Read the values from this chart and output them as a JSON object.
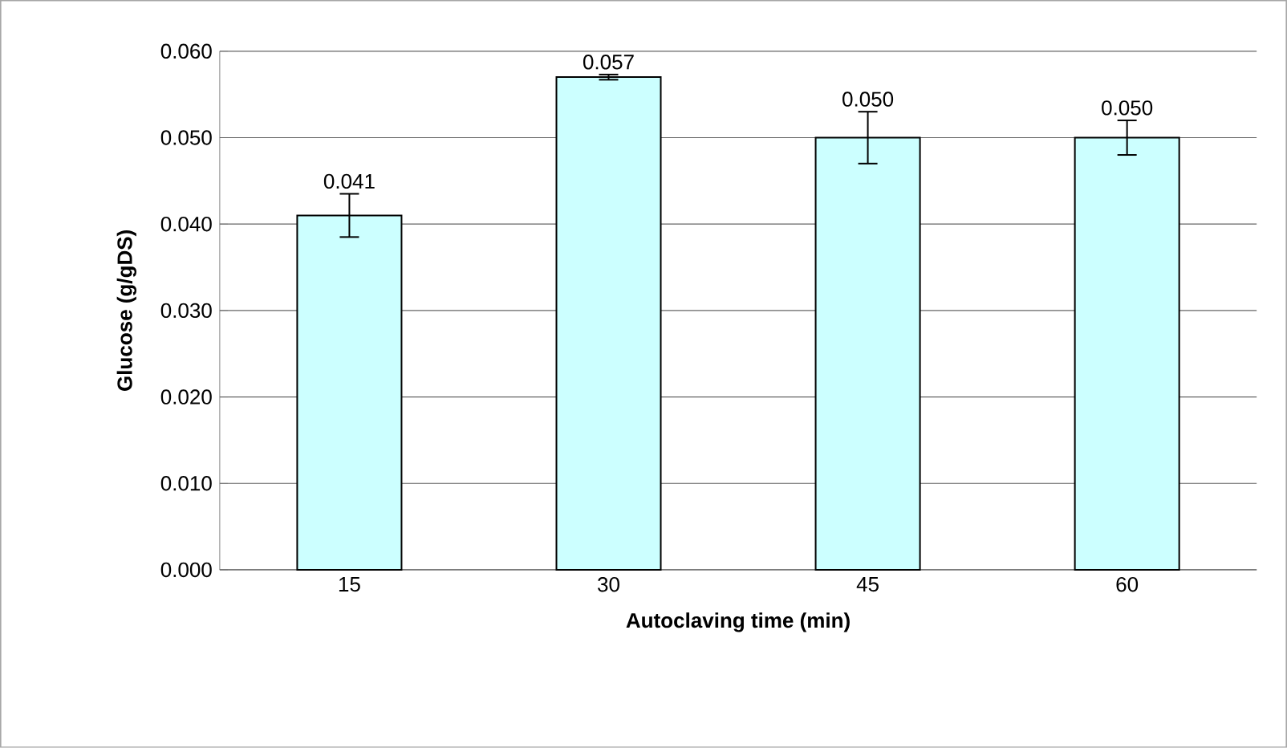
{
  "chart_data": {
    "type": "bar",
    "xlabel": "Autoclaving time (min)",
    "ylabel": "Glucose (g/gDS)",
    "categories": [
      "15",
      "30",
      "45",
      "60"
    ],
    "values": [
      0.041,
      0.057,
      0.05,
      0.05
    ],
    "errors": [
      0.0025,
      0.0003,
      0.003,
      0.002
    ],
    "value_labels": [
      "0.041",
      "0.057",
      "0.050",
      "0.050"
    ],
    "color": "#ccffff",
    "ylim": [
      0,
      0.06
    ],
    "yticks": [
      {
        "value": 0,
        "label": "0.000"
      },
      {
        "value": 0.01,
        "label": "0.010"
      },
      {
        "value": 0.02,
        "label": "0.020"
      },
      {
        "value": 0.03,
        "label": "0.030"
      },
      {
        "value": 0.04,
        "label": "0.040"
      },
      {
        "value": 0.05,
        "label": "0.050"
      },
      {
        "value": 0.06,
        "label": "0.060"
      }
    ],
    "grid": "y"
  }
}
